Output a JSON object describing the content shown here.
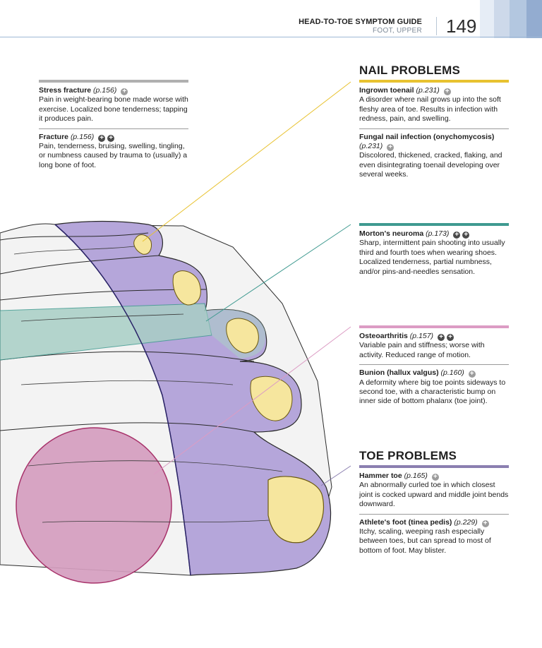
{
  "header": {
    "title": "HEAD-TO-TOE SYMPTOM GUIDE",
    "subtitle": "FOOT, UPPER",
    "page_number": "149"
  },
  "colors": {
    "nail": "#e8c230",
    "morton": "#3f9a90",
    "osteo": "#dc9cc4",
    "toe": "#8b7fb0",
    "stress": "#b0b0b0",
    "toe_fill": "#b5a6da",
    "nerve_fill": "#a9cfc6",
    "joint_fill": "#d59ebf",
    "nail_fill": "#f6e69e"
  },
  "left": {
    "stress": {
      "term": "Stress fracture",
      "ref": "(p.156)",
      "desc": "Pain in weight-bearing bone made worse with exercise. Localized bone tenderness; tapping it produces pain."
    },
    "fracture": {
      "term": "Fracture",
      "ref": "(p.156)",
      "desc": "Pain, tenderness, bruising, swelling, tingling, or numbness caused by trauma to (usually) a long bone of foot."
    }
  },
  "nail_section": {
    "title": "NAIL PROBLEMS",
    "ingrown": {
      "term": "Ingrown toenail",
      "ref": "(p.231)",
      "desc": "A disorder where nail grows up into the soft fleshy area of toe. Results in infection with redness, pain, and swelling."
    },
    "fungal": {
      "term": "Fungal nail infection (onychomycosis)",
      "ref": "(p.231)",
      "desc": "Discolored, thickened, cracked, flaking, and even disintegrating toenail developing over several weeks."
    }
  },
  "morton": {
    "term": "Morton's neuroma",
    "ref": "(p.173)",
    "desc": "Sharp, intermittent pain shooting into usually third and fourth toes when wearing shoes. Localized tenderness, partial numbness, and/or pins-and-needles sensation."
  },
  "osteo": {
    "osteoarthritis": {
      "term": "Osteoarthritis",
      "ref": "(p.157)",
      "desc": "Variable pain and stiffness; worse with activity. Reduced range of motion."
    },
    "bunion": {
      "term": "Bunion (hallux valgus)",
      "ref": "(p.160)",
      "desc": "A deformity where big toe points sideways to second toe, with a characteristic bump on inner side of bottom phalanx (toe joint)."
    }
  },
  "toe_section": {
    "title": "TOE PROBLEMS",
    "hammer": {
      "term": "Hammer toe",
      "ref": "(p.165)",
      "desc": "An abnormally curled toe in which closest joint is cocked upward and middle joint bends downward."
    },
    "athlete": {
      "term": "Athlete's foot (tinea pedis)",
      "ref": "(p.229)",
      "desc": "Itchy, scaling, weeping rash especially between toes, but can spread to most of bottom of foot. May blister."
    }
  },
  "icons": {
    "plus_light": "+",
    "plus_dark": "+"
  }
}
